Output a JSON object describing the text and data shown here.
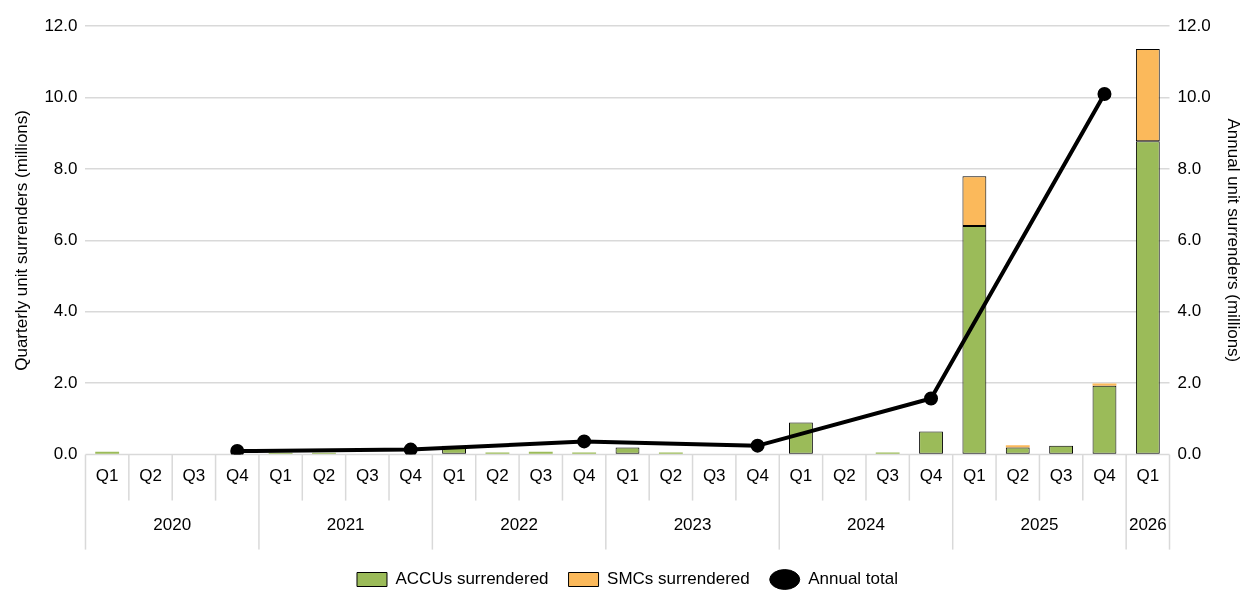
{
  "chart_data": {
    "type": "bar",
    "stacked": true,
    "categories": [
      "Q1",
      "Q2",
      "Q3",
      "Q4",
      "Q1",
      "Q2",
      "Q3",
      "Q4",
      "Q1",
      "Q2",
      "Q3",
      "Q4",
      "Q1",
      "Q2",
      "Q3",
      "Q4",
      "Q1",
      "Q2",
      "Q3",
      "Q4",
      "Q1",
      "Q2",
      "Q3",
      "Q4",
      "Q1"
    ],
    "series": [
      {
        "name": "ACCUs surrendered",
        "color": "#9bbb59",
        "values": [
          0.08,
          null,
          null,
          null,
          0.05,
          0.05,
          null,
          null,
          0.25,
          0.06,
          0.08,
          0.06,
          0.2,
          0.06,
          null,
          null,
          0.9,
          null,
          0.06,
          0.65,
          6.4,
          0.2,
          0.25,
          1.93,
          8.78
        ]
      },
      {
        "name": "SMCs surrendered",
        "color": "#fbb95b",
        "values": [
          null,
          null,
          null,
          null,
          null,
          null,
          null,
          null,
          null,
          null,
          null,
          null,
          null,
          null,
          null,
          null,
          null,
          null,
          null,
          null,
          1.4,
          0.06,
          null,
          0.06,
          2.58
        ]
      },
      {
        "name": "Annual total",
        "type": "line",
        "axis": "y2",
        "color": "#000000",
        "values": [
          null,
          null,
          null,
          0.1,
          null,
          null,
          null,
          0.14,
          null,
          null,
          null,
          0.37,
          null,
          null,
          null,
          0.25,
          null,
          null,
          null,
          1.57,
          null,
          null,
          null,
          10.1,
          null
        ]
      }
    ],
    "ylabel": "Quarterly unit surrenders (millions)",
    "y2label": "Annual unit surrenders (millions)",
    "ylim": [
      0,
      12
    ],
    "yticks": [
      {
        "value": 0,
        "label": "0.0"
      },
      {
        "value": 2,
        "label": "2.0"
      },
      {
        "value": 4,
        "label": "4.0"
      },
      {
        "value": 6,
        "label": "6.0"
      },
      {
        "value": 8,
        "label": "8.0"
      },
      {
        "value": 10,
        "label": "10.0"
      },
      {
        "value": 12,
        "label": "12.0"
      }
    ],
    "y2lim": [
      0,
      12
    ],
    "y2ticks": [
      {
        "value": 0,
        "label": "0.0"
      },
      {
        "value": 2,
        "label": "2.0"
      },
      {
        "value": 4,
        "label": "4.0"
      },
      {
        "value": 6,
        "label": "6.0"
      },
      {
        "value": 8,
        "label": "8.0"
      },
      {
        "value": 10,
        "label": "10.0"
      },
      {
        "value": 12,
        "label": "12.0"
      }
    ],
    "annotations": [
      "2020",
      "2021",
      "2022",
      "2023",
      "2024",
      "2025",
      "2026"
    ],
    "grid": "y",
    "legend": "bottom",
    "marker": "circle",
    "line_style": "solid"
  }
}
